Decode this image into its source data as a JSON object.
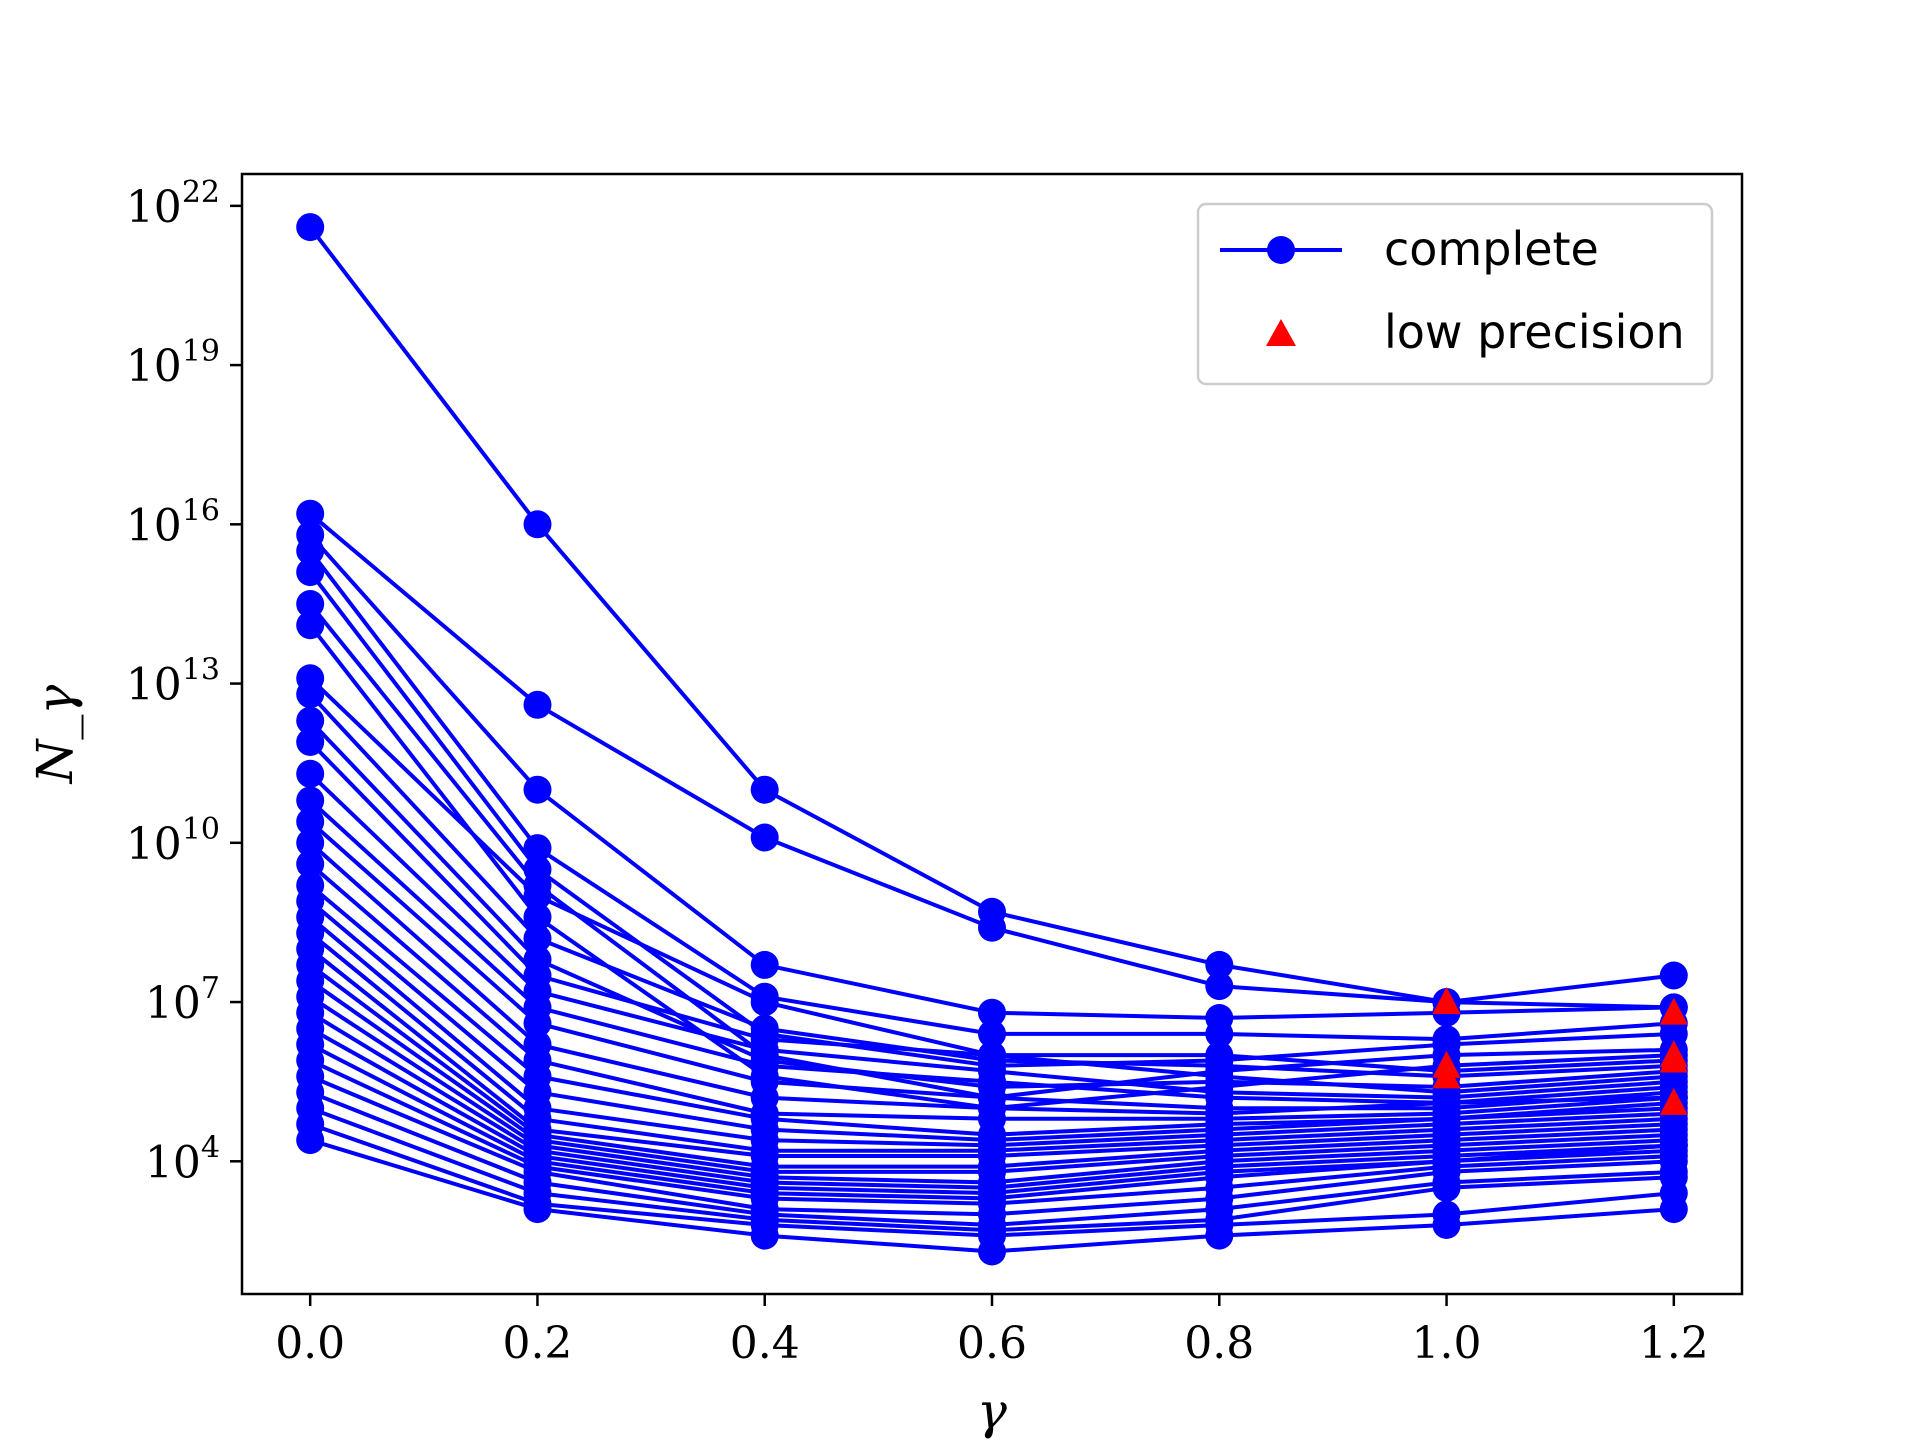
{
  "chart_data": {
    "type": "line",
    "title": "",
    "xlabel": "γ",
    "ylabel": "N_γ",
    "x": [
      0.0,
      0.2,
      0.4,
      0.6,
      0.8,
      1.0,
      1.2
    ],
    "xlim": [
      -0.06,
      1.26
    ],
    "ylim_log10": [
      1.5,
      22.6
    ],
    "yscale": "log",
    "x_ticks": [
      "0.0",
      "0.2",
      "0.4",
      "0.6",
      "0.8",
      "1.0",
      "1.2"
    ],
    "y_ticks": [
      {
        "base": "10",
        "exp": "4",
        "log10": 4
      },
      {
        "base": "10",
        "exp": "7",
        "log10": 7
      },
      {
        "base": "10",
        "exp": "10",
        "log10": 10
      },
      {
        "base": "10",
        "exp": "13",
        "log10": 13
      },
      {
        "base": "10",
        "exp": "16",
        "log10": 16
      },
      {
        "base": "10",
        "exp": "19",
        "log10": 19
      },
      {
        "base": "10",
        "exp": "22",
        "log10": 22
      }
    ],
    "legend": {
      "position": "top-right",
      "entries": [
        {
          "label": "complete",
          "marker": "circle-line",
          "color": "#0000ff"
        },
        {
          "label": "low precision",
          "marker": "triangle",
          "color": "#ff0000"
        }
      ]
    },
    "colors": {
      "complete": "#0000ff",
      "low_precision": "#ff0000"
    },
    "series_log10": [
      [
        21.6,
        16.0,
        11.0,
        8.7,
        7.7,
        7.0,
        7.5
      ],
      [
        16.2,
        12.6,
        10.1,
        8.4,
        7.3,
        7.0,
        6.9
      ],
      [
        15.8,
        11.0,
        7.7,
        6.8,
        6.7,
        6.8,
        6.9
      ],
      [
        15.5,
        9.9,
        7.1,
        6.4,
        6.4,
        6.3,
        6.6
      ],
      [
        15.1,
        9.5,
        6.4,
        5.8,
        5.9,
        6.2,
        6.4
      ],
      [
        14.5,
        9.2,
        6.0,
        5.2,
        5.7,
        6.0,
        6.1
      ],
      [
        14.1,
        8.6,
        5.6,
        5.0,
        5.4,
        5.8,
        6.0
      ],
      [
        13.1,
        9.0,
        7.0,
        6.0,
        6.0,
        5.7,
        5.9
      ],
      [
        12.8,
        8.2,
        6.5,
        5.9,
        5.8,
        5.6,
        5.8
      ],
      [
        12.3,
        7.8,
        5.9,
        5.4,
        5.5,
        5.4,
        5.7
      ],
      [
        11.9,
        7.5,
        6.3,
        6.0,
        5.6,
        5.3,
        5.6
      ],
      [
        11.3,
        7.2,
        6.1,
        5.7,
        5.3,
        5.2,
        5.5
      ],
      [
        10.8,
        6.9,
        5.8,
        5.5,
        5.2,
        5.1,
        5.4
      ],
      [
        10.4,
        6.6,
        5.5,
        5.2,
        5.0,
        5.0,
        5.3
      ],
      [
        10.0,
        6.2,
        5.2,
        5.0,
        4.9,
        5.1,
        5.2
      ],
      [
        9.6,
        5.9,
        4.9,
        4.8,
        4.8,
        4.9,
        5.2
      ],
      [
        9.2,
        5.6,
        4.8,
        4.5,
        4.7,
        4.8,
        5.1
      ],
      [
        8.9,
        5.3,
        4.6,
        4.4,
        4.6,
        4.8,
        5.0
      ],
      [
        8.6,
        5.0,
        4.4,
        4.3,
        4.5,
        4.7,
        4.9
      ],
      [
        8.3,
        4.8,
        4.2,
        4.2,
        4.4,
        4.6,
        4.8
      ],
      [
        8.0,
        4.6,
        4.1,
        4.1,
        4.3,
        4.5,
        4.7
      ],
      [
        7.7,
        4.5,
        3.9,
        3.9,
        4.2,
        4.4,
        4.6
      ],
      [
        7.4,
        4.4,
        3.8,
        3.8,
        4.1,
        4.3,
        4.5
      ],
      [
        7.1,
        4.3,
        3.7,
        3.6,
        4.0,
        4.2,
        4.4
      ],
      [
        6.8,
        4.2,
        3.6,
        3.5,
        3.9,
        4.1,
        4.3
      ],
      [
        6.5,
        4.1,
        3.5,
        3.4,
        3.8,
        4.0,
        4.3
      ],
      [
        6.2,
        4.0,
        3.4,
        3.3,
        3.7,
        4.0,
        4.2
      ],
      [
        5.9,
        3.9,
        3.3,
        3.2,
        3.5,
        3.9,
        4.1
      ],
      [
        5.6,
        3.8,
        3.1,
        3.0,
        3.3,
        3.8,
        4.0
      ],
      [
        5.3,
        3.6,
        3.0,
        2.8,
        3.1,
        3.6,
        3.8
      ],
      [
        5.0,
        3.4,
        2.9,
        2.7,
        2.9,
        3.5,
        3.7
      ],
      [
        4.7,
        3.2,
        2.8,
        2.6,
        2.8,
        3.0,
        3.4
      ],
      [
        4.4,
        3.1,
        2.6,
        2.3,
        2.6,
        2.8,
        3.1
      ]
    ],
    "low_precision_points": [
      {
        "x": 1.0,
        "log10": 7.0
      },
      {
        "x": 1.0,
        "log10": 5.8
      },
      {
        "x": 1.0,
        "log10": 5.6
      },
      {
        "x": 1.2,
        "log10": 6.8
      },
      {
        "x": 1.2,
        "log10": 6.0
      },
      {
        "x": 1.2,
        "log10": 5.9
      },
      {
        "x": 1.2,
        "log10": 5.1
      }
    ]
  }
}
